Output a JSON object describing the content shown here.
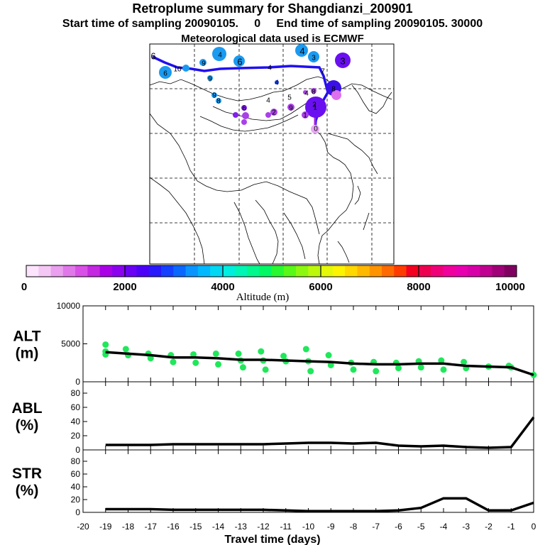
{
  "title": "Retroplume summary for Shangdianzi_200901",
  "subtitle": "Start time of sampling 20090105.     0     End time of sampling 20090105. 30000",
  "subtitle2": "Meteorological data used is ECMWF",
  "colorbar": {
    "label": "Altitude (m)",
    "ticks": [
      "0",
      "2000",
      "4000",
      "6000",
      "8000",
      "10000"
    ],
    "colors": [
      "#fce4fc",
      "#f4c8f4",
      "#eaa0ee",
      "#e078ea",
      "#d850e6",
      "#c428e0",
      "#aa00e6",
      "#8c00f0",
      "#6a00f4",
      "#4c00f8",
      "#2818fc",
      "#1440ff",
      "#0a68ff",
      "#0a94ff",
      "#00b8ff",
      "#00d8f4",
      "#00eee0",
      "#00f6b4",
      "#00f88c",
      "#00f864",
      "#28f830",
      "#58f818",
      "#8cf810",
      "#bcf80c",
      "#e4f808",
      "#fcf400",
      "#ffd800",
      "#ffb800",
      "#ff9400",
      "#ff6a00",
      "#ff3c00",
      "#f40020",
      "#ee0050",
      "#f00078",
      "#f0009c",
      "#e800b0",
      "#d800a8",
      "#c00090",
      "#a00078",
      "#800060"
    ]
  },
  "map_labels": [
    "6",
    "6",
    "10",
    "9",
    "9",
    "4",
    "6",
    "4",
    "4",
    "3",
    "3",
    "7",
    "8",
    "9",
    "8",
    "4",
    "6",
    "4",
    "5",
    "4",
    "8",
    "2",
    "1",
    "1",
    "9",
    "0",
    "2"
  ],
  "chart_data": [
    {
      "type": "line",
      "panel": "ALT",
      "ylabel": "ALT\n(m)",
      "ylim": [
        0,
        10000
      ],
      "yticks": [
        "0",
        "5000",
        "10000"
      ],
      "x": [
        -19,
        -18,
        -17,
        -16,
        -15,
        -14,
        -13,
        -12,
        -11,
        -10,
        -9,
        -8,
        -7,
        -6,
        -5,
        -4,
        -3,
        -2,
        -1,
        0
      ],
      "values": [
        3900,
        3700,
        3500,
        3200,
        3200,
        3100,
        2900,
        2900,
        2800,
        2700,
        2600,
        2400,
        2300,
        2300,
        2400,
        2400,
        2100,
        2000,
        1900,
        900
      ],
      "scatter_color": "#1fe85a",
      "scatter": [
        [
          -19,
          4900
        ],
        [
          -19,
          4000
        ],
        [
          -19,
          3600
        ],
        [
          -18.1,
          4300
        ],
        [
          -18,
          3500
        ],
        [
          -17.1,
          3700
        ],
        [
          -17,
          3100
        ],
        [
          -16.1,
          3500
        ],
        [
          -16,
          2600
        ],
        [
          -15.1,
          3600
        ],
        [
          -15,
          2500
        ],
        [
          -14.1,
          3700
        ],
        [
          -14,
          2300
        ],
        [
          -13.1,
          3700
        ],
        [
          -13,
          2800
        ],
        [
          -12.9,
          1900
        ],
        [
          -12.1,
          4000
        ],
        [
          -12,
          2800
        ],
        [
          -11.9,
          1600
        ],
        [
          -11.1,
          3400
        ],
        [
          -11,
          2700
        ],
        [
          -10.1,
          4300
        ],
        [
          -10,
          2700
        ],
        [
          -9.9,
          1400
        ],
        [
          -9.1,
          3500
        ],
        [
          -9,
          2200
        ],
        [
          -8.1,
          2500
        ],
        [
          -8,
          1600
        ],
        [
          -7.1,
          2600
        ],
        [
          -7,
          1400
        ],
        [
          -6.1,
          2500
        ],
        [
          -6,
          1800
        ],
        [
          -5.1,
          2700
        ],
        [
          -5,
          1900
        ],
        [
          -4.1,
          2800
        ],
        [
          -4,
          1600
        ],
        [
          -3.1,
          2600
        ],
        [
          -3,
          1800
        ],
        [
          -2,
          2000
        ],
        [
          -1.1,
          2100
        ],
        [
          -1,
          1900
        ],
        [
          0,
          900
        ]
      ]
    },
    {
      "type": "line",
      "panel": "ABL",
      "ylabel": "ABL\n(%)",
      "ylim": [
        0,
        90
      ],
      "yticks": [
        "0",
        "20",
        "40",
        "60",
        "80"
      ],
      "x": [
        -19,
        -18,
        -17,
        -16,
        -15,
        -14,
        -13,
        -12,
        -11,
        -10,
        -9,
        -8,
        -7,
        -6,
        -5,
        -4,
        -3,
        -2,
        -1,
        0
      ],
      "values": [
        7,
        7,
        7,
        8,
        8,
        8,
        8,
        8,
        9,
        10,
        10,
        9,
        10,
        6,
        5,
        6,
        4,
        3,
        4,
        46
      ]
    },
    {
      "type": "line",
      "panel": "STR",
      "ylabel": "STR\n(%)",
      "ylim": [
        0,
        90
      ],
      "yticks": [
        "0",
        "20",
        "40",
        "60",
        "80"
      ],
      "x": [
        -19,
        -18,
        -17,
        -16,
        -15,
        -14,
        -13,
        -12,
        -11,
        -10,
        -9,
        -8,
        -7,
        -6,
        -5,
        -4,
        -3,
        -2,
        -1,
        0
      ],
      "values": [
        5,
        5,
        5,
        4,
        4,
        4,
        4,
        4,
        3,
        2,
        2,
        2,
        2,
        3,
        7,
        22,
        22,
        3,
        3,
        15
      ]
    }
  ],
  "xaxis": {
    "label": "Travel time (days)",
    "xlim": [
      -20,
      0
    ],
    "ticks": [
      "-20",
      "-19",
      "-18",
      "-17",
      "-16",
      "-15",
      "-14",
      "-13",
      "-12",
      "-11",
      "-10",
      "-9",
      "-8",
      "-7",
      "-6",
      "-5",
      "-4",
      "-3",
      "-2",
      "-1",
      "0"
    ]
  }
}
